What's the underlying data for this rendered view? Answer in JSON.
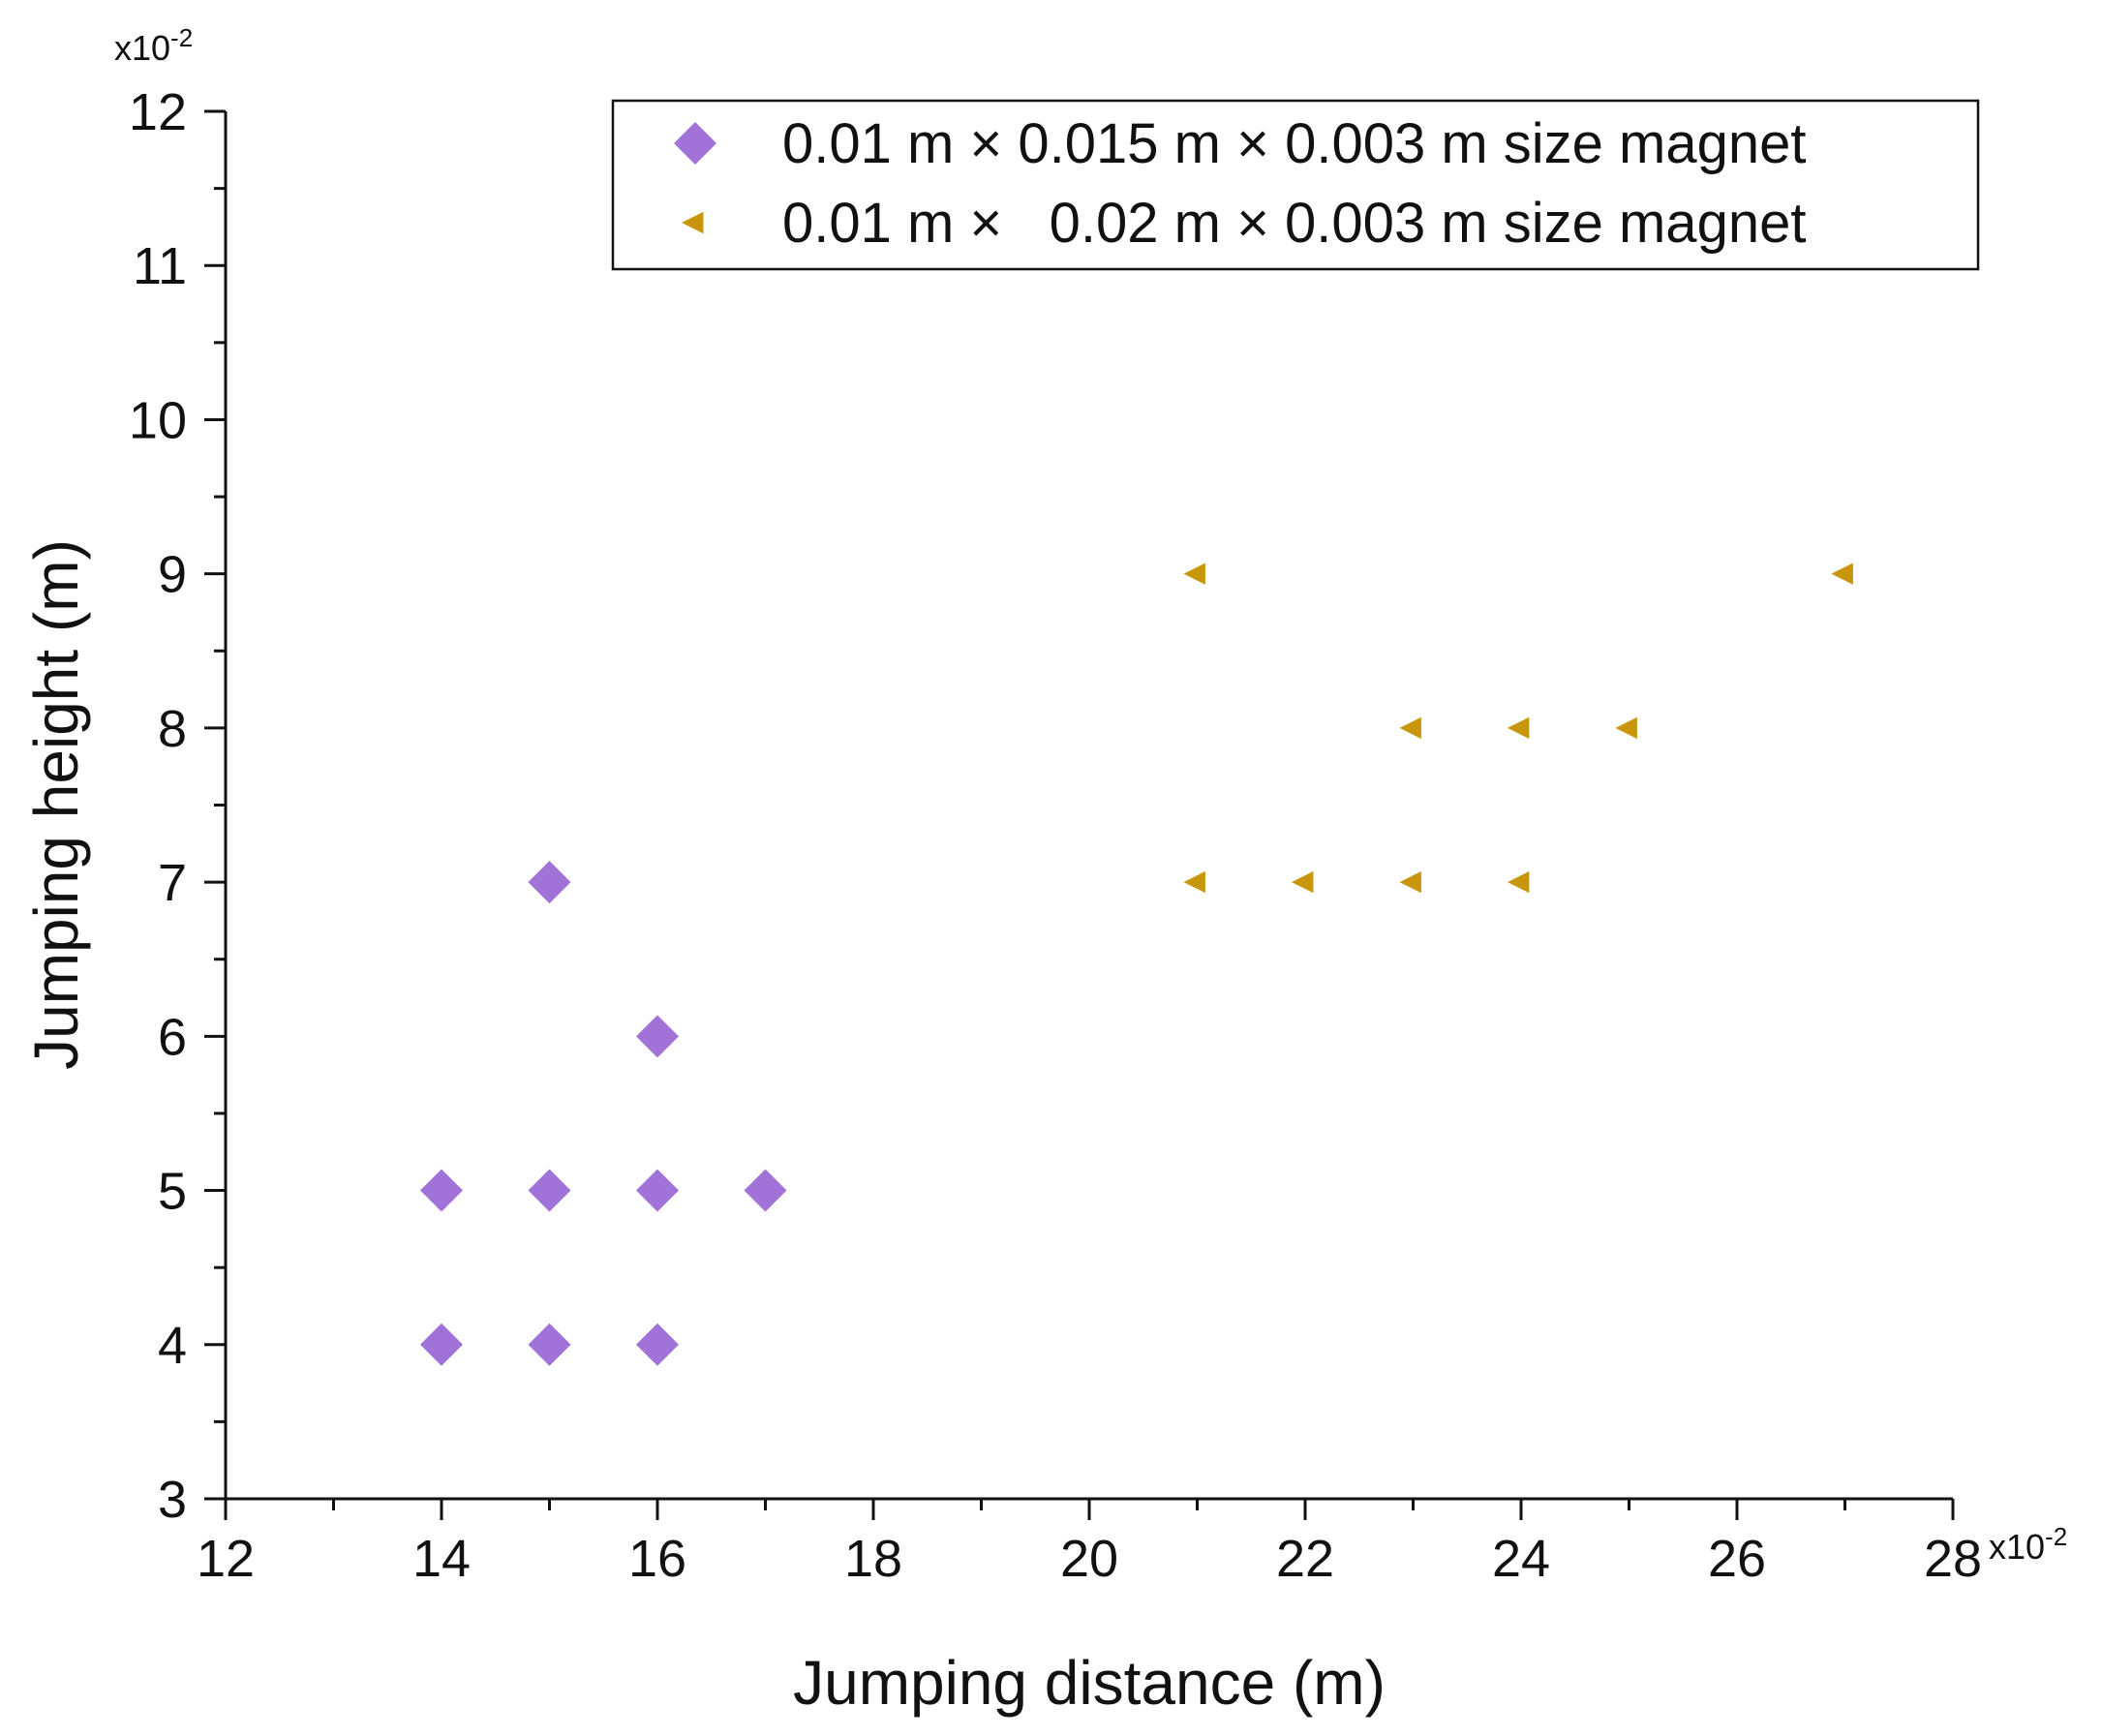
{
  "chart_data": {
    "type": "scatter",
    "xlabel": "Jumping distance (m)",
    "ylabel": "Jumping height (m)",
    "x_multiplier": {
      "base": "x10",
      "exponent": "-2"
    },
    "y_multiplier": {
      "base": "x10",
      "exponent": "-2"
    },
    "xlim": [
      12,
      28
    ],
    "ylim": [
      3,
      12
    ],
    "x_ticks": [
      "12",
      "14",
      "16",
      "18",
      "20",
      "22",
      "24",
      "26",
      "28"
    ],
    "y_ticks": [
      "3",
      "4",
      "5",
      "6",
      "7",
      "8",
      "9",
      "10",
      "11",
      "12"
    ],
    "grid": false,
    "legend_position": "top-right",
    "series": [
      {
        "name": "0.01 m × 0.015 m × 0.003 m size magnet",
        "marker": "diamond",
        "color": "#a173d9",
        "points": [
          {
            "x": 15,
            "y": 7
          },
          {
            "x": 16,
            "y": 6
          },
          {
            "x": 14,
            "y": 5
          },
          {
            "x": 15,
            "y": 5
          },
          {
            "x": 16,
            "y": 5
          },
          {
            "x": 17,
            "y": 5
          },
          {
            "x": 14,
            "y": 4
          },
          {
            "x": 15,
            "y": 4
          },
          {
            "x": 16,
            "y": 4
          }
        ]
      },
      {
        "name": "0.01 m ×   0.02 m × 0.003 m size magnet",
        "marker": "triangle-left",
        "color": "#c8960a",
        "points": [
          {
            "x": 21,
            "y": 9
          },
          {
            "x": 27,
            "y": 9
          },
          {
            "x": 23,
            "y": 8
          },
          {
            "x": 24,
            "y": 8
          },
          {
            "x": 25,
            "y": 8
          },
          {
            "x": 21,
            "y": 7
          },
          {
            "x": 22,
            "y": 7
          },
          {
            "x": 23,
            "y": 7
          },
          {
            "x": 24,
            "y": 7
          }
        ]
      }
    ]
  }
}
